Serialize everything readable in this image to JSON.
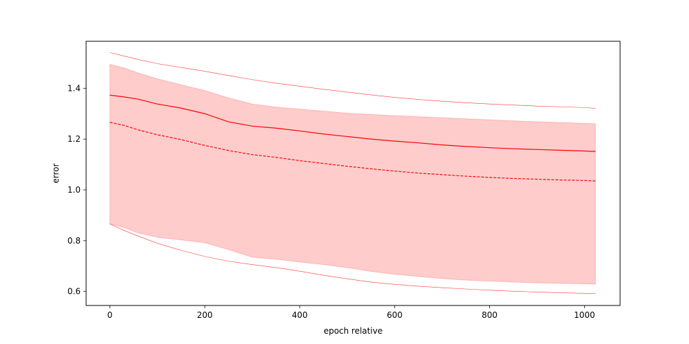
{
  "chart_data": {
    "type": "line",
    "title": "",
    "xlabel": "epoch relative",
    "ylabel": "error",
    "xlim": [
      -50,
      1075
    ],
    "ylim": [
      0.545,
      1.585
    ],
    "xticks": [
      0,
      200,
      400,
      600,
      800,
      1000
    ],
    "yticks": [
      0.6,
      0.8,
      1.0,
      1.2,
      1.4
    ],
    "ytick_labels": [
      "0.6",
      "0.8",
      "1.0",
      "1.2",
      "1.4"
    ],
    "grid": false,
    "color": "#ff0000",
    "band_color": "#ff0000",
    "x": [
      0,
      30,
      60,
      100,
      150,
      200,
      250,
      300,
      350,
      400,
      450,
      500,
      550,
      600,
      650,
      700,
      750,
      800,
      850,
      900,
      950,
      1000,
      1023
    ],
    "series": [
      {
        "values": [
          1.373,
          1.366,
          1.357,
          1.338,
          1.322,
          1.3,
          1.268,
          1.251,
          1.243,
          1.232,
          1.22,
          1.21,
          1.2,
          1.192,
          1.185,
          1.177,
          1.171,
          1.166,
          1.162,
          1.159,
          1.156,
          1.153,
          1.151
        ],
        "style": "solid",
        "width": 1.2
      },
      {
        "values": [
          1.266,
          1.254,
          1.236,
          1.217,
          1.198,
          1.175,
          1.155,
          1.139,
          1.128,
          1.115,
          1.104,
          1.093,
          1.083,
          1.074,
          1.066,
          1.06,
          1.054,
          1.049,
          1.045,
          1.042,
          1.039,
          1.037,
          1.035
        ],
        "style": "dashed",
        "width": 1.2
      },
      {
        "values": [
          1.541,
          1.527,
          1.513,
          1.497,
          1.482,
          1.467,
          1.45,
          1.434,
          1.42,
          1.408,
          1.396,
          1.385,
          1.374,
          1.364,
          1.356,
          1.349,
          1.343,
          1.338,
          1.334,
          1.33,
          1.327,
          1.324,
          1.321
        ],
        "style": "solid",
        "width": 0.6
      },
      {
        "values": [
          0.866,
          0.84,
          0.818,
          0.79,
          0.762,
          0.738,
          0.719,
          0.706,
          0.694,
          0.68,
          0.664,
          0.65,
          0.637,
          0.628,
          0.621,
          0.615,
          0.61,
          0.605,
          0.601,
          0.598,
          0.595,
          0.593,
          0.592
        ],
        "style": "solid",
        "width": 0.6
      }
    ],
    "band": {
      "upper": [
        1.494,
        1.48,
        1.46,
        1.437,
        1.414,
        1.391,
        1.362,
        1.338,
        1.326,
        1.318,
        1.31,
        1.302,
        1.297,
        1.292,
        1.288,
        1.284,
        1.28,
        1.276,
        1.272,
        1.268,
        1.265,
        1.262,
        1.26
      ],
      "lower": [
        0.866,
        0.852,
        0.83,
        0.813,
        0.803,
        0.792,
        0.765,
        0.735,
        0.727,
        0.716,
        0.706,
        0.694,
        0.679,
        0.668,
        0.659,
        0.651,
        0.645,
        0.641,
        0.637,
        0.634,
        0.632,
        0.63,
        0.629
      ]
    }
  }
}
